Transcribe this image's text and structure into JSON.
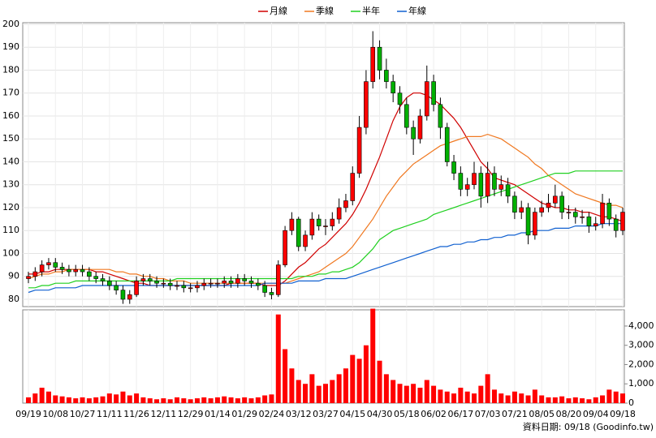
{
  "chart_data": {
    "type": "candlestick",
    "up_color": "#ff0000",
    "down_color": "#00b000",
    "categories": [
      "09/19",
      null,
      null,
      null,
      "10/08",
      null,
      null,
      null,
      "10/27",
      null,
      null,
      null,
      "11/11",
      null,
      null,
      null,
      "11/26",
      null,
      null,
      null,
      "12/11",
      null,
      null,
      null,
      "12/29",
      null,
      null,
      null,
      "01/14",
      null,
      null,
      null,
      "01/29",
      null,
      null,
      null,
      "02/24",
      null,
      null,
      null,
      "03/12",
      null,
      null,
      null,
      "03/27",
      null,
      null,
      null,
      "04/15",
      null,
      null,
      null,
      "04/30",
      null,
      null,
      null,
      "05/18",
      null,
      null,
      null,
      "06/02",
      null,
      null,
      null,
      "06/17",
      null,
      null,
      null,
      "07/03",
      null,
      null,
      null,
      "07/21",
      null,
      null,
      null,
      "08/05",
      null,
      null,
      null,
      "08/20",
      null,
      null,
      null,
      "09/04",
      null,
      null,
      null,
      "09/18"
    ],
    "open": [
      89,
      90,
      92,
      95,
      96,
      94,
      93,
      92,
      93,
      92,
      90,
      89,
      88,
      86,
      84,
      80,
      82,
      88,
      89,
      88,
      87,
      87,
      86,
      86,
      85,
      85,
      86,
      87,
      87,
      87,
      88,
      87,
      89,
      88,
      87,
      86,
      83,
      82,
      95,
      110,
      115,
      103,
      108,
      115,
      112,
      112,
      115,
      120,
      123,
      135,
      155,
      175,
      190,
      180,
      175,
      170,
      165,
      155,
      150,
      160,
      175,
      165,
      155,
      140,
      135,
      128,
      130,
      135,
      125,
      135,
      128,
      130,
      125,
      118,
      120,
      108,
      118,
      120,
      122,
      125,
      118,
      118,
      116,
      116,
      112,
      113,
      122,
      115,
      110
    ],
    "high": [
      92,
      94,
      97,
      98,
      98,
      96,
      95,
      95,
      95,
      94,
      92,
      91,
      90,
      88,
      86,
      84,
      90,
      91,
      91,
      90,
      89,
      89,
      88,
      88,
      87,
      88,
      89,
      89,
      89,
      90,
      90,
      91,
      91,
      90,
      89,
      88,
      85,
      97,
      112,
      118,
      116,
      110,
      118,
      117,
      115,
      118,
      124,
      126,
      138,
      160,
      180,
      197,
      193,
      185,
      178,
      173,
      168,
      158,
      163,
      182,
      178,
      168,
      157,
      143,
      138,
      133,
      140,
      138,
      140,
      138,
      134,
      133,
      127,
      123,
      122,
      120,
      123,
      126,
      130,
      127,
      121,
      120,
      119,
      118,
      116,
      126,
      124,
      117,
      120
    ],
    "low": [
      87,
      88,
      90,
      93,
      92,
      91,
      90,
      90,
      90,
      88,
      87,
      86,
      84,
      82,
      78,
      78,
      81,
      86,
      86,
      85,
      85,
      84,
      84,
      83,
      83,
      83,
      84,
      85,
      85,
      85,
      85,
      85,
      86,
      85,
      84,
      81,
      80,
      81,
      94,
      108,
      101,
      101,
      106,
      110,
      108,
      110,
      113,
      118,
      121,
      133,
      152,
      172,
      176,
      172,
      166,
      161,
      152,
      143,
      148,
      158,
      162,
      150,
      138,
      132,
      125,
      125,
      128,
      120,
      122,
      125,
      125,
      122,
      115,
      115,
      104,
      106,
      116,
      118,
      120,
      115,
      115,
      113,
      113,
      109,
      110,
      111,
      112,
      107,
      108
    ],
    "close": [
      90,
      92,
      95,
      96,
      94,
      93,
      92,
      93,
      92,
      90,
      89,
      88,
      86,
      84,
      80,
      82,
      88,
      89,
      88,
      87,
      87,
      86,
      86,
      85,
      85,
      86,
      87,
      87,
      87,
      88,
      87,
      89,
      88,
      87,
      86,
      83,
      82,
      95,
      110,
      115,
      103,
      108,
      115,
      112,
      112,
      115,
      120,
      123,
      135,
      155,
      175,
      190,
      180,
      175,
      170,
      165,
      155,
      150,
      160,
      175,
      165,
      155,
      140,
      135,
      128,
      130,
      135,
      125,
      135,
      128,
      130,
      125,
      118,
      120,
      108,
      118,
      120,
      122,
      125,
      118,
      118,
      116,
      116,
      112,
      113,
      122,
      115,
      110,
      118
    ],
    "series": [
      {
        "name": "月線",
        "color": "#d00000",
        "values": [
          91,
          91,
          92,
          92,
          93,
          93,
          93,
          93,
          93,
          93,
          92,
          92,
          91,
          90,
          89,
          88,
          87,
          87,
          86,
          86,
          86,
          86,
          86,
          86,
          86,
          86,
          86,
          86,
          86,
          86,
          87,
          87,
          87,
          87,
          87,
          86,
          86,
          86,
          88,
          91,
          94,
          96,
          99,
          102,
          104,
          107,
          110,
          113,
          117,
          122,
          128,
          135,
          142,
          150,
          158,
          164,
          168,
          170,
          170,
          169,
          167,
          165,
          162,
          159,
          155,
          150,
          145,
          140,
          137,
          133,
          132,
          131,
          130,
          128,
          126,
          124,
          122,
          121,
          120,
          120,
          119,
          119,
          118,
          118,
          117,
          116,
          116,
          115,
          114
        ]
      },
      {
        "name": "季線",
        "color": "#f07820",
        "values": [
          89,
          90,
          91,
          91,
          92,
          92,
          93,
          93,
          93,
          93,
          93,
          93,
          93,
          92,
          92,
          91,
          91,
          90,
          90,
          89,
          89,
          88,
          88,
          88,
          87,
          87,
          87,
          87,
          87,
          87,
          87,
          87,
          87,
          87,
          87,
          87,
          87,
          87,
          87,
          88,
          89,
          90,
          91,
          92,
          94,
          96,
          98,
          100,
          103,
          107,
          111,
          115,
          120,
          125,
          129,
          133,
          136,
          139,
          141,
          143,
          145,
          147,
          148,
          149,
          150,
          151,
          151,
          151,
          152,
          151,
          150,
          148,
          146,
          144,
          142,
          139,
          137,
          134,
          132,
          130,
          128,
          126,
          125,
          124,
          123,
          122,
          121,
          121,
          120
        ]
      },
      {
        "name": "半年",
        "color": "#20d020",
        "values": [
          85,
          85,
          86,
          86,
          87,
          87,
          87,
          88,
          88,
          88,
          88,
          88,
          88,
          88,
          88,
          88,
          88,
          88,
          88,
          88,
          88,
          88,
          89,
          89,
          89,
          89,
          89,
          89,
          89,
          89,
          89,
          89,
          89,
          89,
          89,
          89,
          89,
          89,
          89,
          89,
          90,
          90,
          90,
          91,
          91,
          92,
          92,
          93,
          94,
          96,
          99,
          102,
          106,
          108,
          110,
          111,
          112,
          113,
          114,
          115,
          117,
          118,
          119,
          120,
          121,
          122,
          123,
          124,
          125,
          126,
          127,
          128,
          129,
          130,
          131,
          132,
          133,
          134,
          135,
          135,
          135,
          136,
          136,
          136,
          136,
          136,
          136,
          136,
          136
        ]
      },
      {
        "name": "年線",
        "color": "#1060d0",
        "values": [
          83,
          84,
          84,
          84,
          85,
          85,
          85,
          85,
          86,
          86,
          86,
          86,
          86,
          86,
          86,
          86,
          86,
          86,
          86,
          86,
          86,
          86,
          86,
          86,
          86,
          86,
          86,
          86,
          86,
          86,
          86,
          86,
          86,
          86,
          86,
          87,
          87,
          87,
          87,
          87,
          88,
          88,
          88,
          88,
          89,
          89,
          89,
          89,
          90,
          91,
          92,
          93,
          94,
          95,
          96,
          97,
          98,
          99,
          100,
          101,
          102,
          103,
          103,
          104,
          104,
          105,
          105,
          106,
          106,
          107,
          107,
          108,
          108,
          109,
          109,
          110,
          110,
          110,
          111,
          111,
          111,
          112,
          112,
          112,
          112,
          113,
          113,
          113,
          113
        ]
      }
    ],
    "ylim": [
      76.8,
      200.7
    ],
    "yticks": [
      80,
      90,
      100,
      110,
      120,
      130,
      140,
      150,
      160,
      170,
      180,
      190,
      200
    ],
    "grid": true,
    "volume": {
      "color": "#ff0000",
      "ylim": [
        0,
        4840
      ],
      "yticks": [
        0,
        {
          "value": 1000,
          "label": "1,000"
        },
        {
          "value": 2000,
          "label": "2,000"
        },
        {
          "value": 3000,
          "label": "3,000"
        },
        {
          "value": 4000,
          "label": "4,000"
        }
      ],
      "values": [
        300,
        500,
        800,
        600,
        400,
        350,
        300,
        250,
        300,
        250,
        300,
        350,
        500,
        450,
        600,
        400,
        500,
        300,
        250,
        200,
        250,
        200,
        300,
        250,
        200,
        250,
        300,
        250,
        300,
        350,
        300,
        250,
        300,
        250,
        300,
        400,
        450,
        4600,
        2800,
        1800,
        1200,
        1000,
        1500,
        900,
        1000,
        1200,
        1500,
        1800,
        2500,
        2300,
        3000,
        4900,
        2200,
        1500,
        1200,
        1000,
        900,
        1000,
        800,
        1200,
        900,
        700,
        600,
        500,
        800,
        600,
        500,
        900,
        1500,
        700,
        500,
        400,
        600,
        500,
        400,
        700,
        400,
        300,
        300,
        350,
        250,
        300,
        250,
        200,
        300,
        400,
        700,
        600,
        500
      ]
    },
    "note": "資料日期: 09/18 (Goodinfo.tw)"
  }
}
